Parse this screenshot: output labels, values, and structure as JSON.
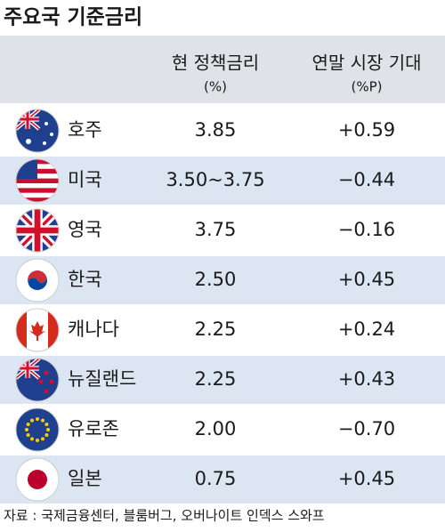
{
  "header": {
    "title": "주요국 기준금리"
  },
  "table": {
    "columns": [
      {
        "label": "현 정책금리",
        "unit": "(%)"
      },
      {
        "label": "연말 시장 기대",
        "unit": "(%P)"
      }
    ],
    "rows": [
      [
        "호주",
        "3.85",
        "+0.59"
      ],
      [
        "미국",
        "3.50~3.75",
        "−0.44"
      ],
      [
        "영국",
        "3.75",
        "−0.16"
      ],
      [
        "한국",
        "2.50",
        "+0.45"
      ],
      [
        "캐나다",
        "2.25",
        "+0.24"
      ],
      [
        "뉴질랜드",
        "2.25",
        "+0.43"
      ],
      [
        "유로존",
        "2.00",
        "−0.70"
      ],
      [
        "일본",
        "0.75",
        "+0.45"
      ]
    ]
  },
  "footer": {
    "source": "자료 : 국제금융센터, 블룸버그, 오버나이트 인덱스 스와프"
  }
}
